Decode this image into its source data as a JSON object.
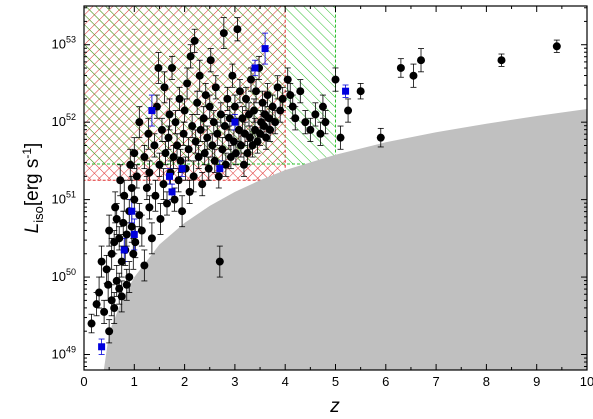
{
  "chart_data": {
    "type": "scatter",
    "title": "",
    "xlabel": "z",
    "ylabel_main": "L",
    "ylabel_sub": "iso",
    "ylabel_units_prefix": "[erg s",
    "ylabel_units_sup": "-1",
    "ylabel_units_suffix": "]",
    "xlim": [
      0,
      10
    ],
    "ylim_log10": [
      48.8,
      53.5
    ],
    "yscale": "log",
    "grid": false,
    "x_ticks": [
      "0",
      "1",
      "2",
      "3",
      "4",
      "5",
      "6",
      "7",
      "8",
      "9",
      "10"
    ],
    "y_ticks": [
      {
        "base": "10",
        "exp": "49",
        "log": 49
      },
      {
        "base": "10",
        "exp": "50",
        "log": 50
      },
      {
        "base": "10",
        "exp": "51",
        "log": 51
      },
      {
        "base": "10",
        "exp": "52",
        "log": 52
      },
      {
        "base": "10",
        "exp": "53",
        "log": 53
      }
    ],
    "colors": {
      "black_points": "#000000",
      "blue_points": "#0000dd",
      "red_hatch": "#e03030",
      "green_hatch": "#30c030",
      "threshold_fill": "#c0c0c0"
    },
    "threshold_curve": {
      "x": [
        0.35,
        0.5,
        0.75,
        1.0,
        1.5,
        2.0,
        2.5,
        3.0,
        3.5,
        4.0,
        5.0,
        6.0,
        7.0,
        8.0,
        9.0,
        10.0
      ],
      "logL": [
        48.6,
        49.28,
        49.7,
        50.0,
        50.42,
        50.7,
        50.92,
        51.1,
        51.25,
        51.38,
        51.58,
        51.74,
        51.87,
        51.98,
        52.08,
        52.17
      ]
    },
    "regions": [
      {
        "color": "red",
        "x": [
          0,
          4.0
        ],
        "logL_min": 51.25,
        "logL_max": 53.5
      },
      {
        "color": "green",
        "x": [
          0,
          5.0
        ],
        "logL_min": 51.46,
        "logL_max": 53.5
      }
    ],
    "series": [
      {
        "marker": "circle",
        "color": "black",
        "points": [
          [
            0.15,
            49.4,
            0.12
          ],
          [
            0.25,
            49.65,
            0.15
          ],
          [
            0.3,
            49.8,
            0.2
          ],
          [
            0.35,
            50.2,
            0.2
          ],
          [
            0.4,
            49.55,
            0.15
          ],
          [
            0.45,
            50.1,
            0.18
          ],
          [
            0.48,
            49.9,
            0.2
          ],
          [
            0.5,
            50.6,
            0.2
          ],
          [
            0.5,
            49.3,
            0.15
          ],
          [
            0.55,
            50.3,
            0.2
          ],
          [
            0.55,
            49.7,
            0.2
          ],
          [
            0.6,
            50.45,
            0.15
          ],
          [
            0.6,
            49.6,
            0.2
          ],
          [
            0.62,
            50.9,
            0.2
          ],
          [
            0.65,
            49.95,
            0.2
          ],
          [
            0.65,
            50.75,
            0.2
          ],
          [
            0.7,
            50.5,
            0.15
          ],
          [
            0.7,
            49.85,
            0.2
          ],
          [
            0.72,
            51.25,
            0.2
          ],
          [
            0.75,
            50.2,
            0.2
          ],
          [
            0.75,
            49.75,
            0.2
          ],
          [
            0.78,
            50.7,
            0.15
          ],
          [
            0.8,
            51.05,
            0.2
          ],
          [
            0.82,
            50.35,
            0.2
          ],
          [
            0.85,
            49.9,
            0.2
          ],
          [
            0.85,
            50.55,
            0.15
          ],
          [
            0.9,
            50.0,
            0.2
          ],
          [
            0.9,
            50.85,
            0.15
          ],
          [
            0.92,
            51.45,
            0.2
          ],
          [
            0.95,
            50.65,
            0.2
          ],
          [
            0.95,
            51.15,
            0.15
          ],
          [
            0.98,
            50.3,
            0.2
          ],
          [
            1.0,
            51.0,
            0.15
          ],
          [
            1.0,
            51.6,
            0.2
          ],
          [
            1.02,
            50.45,
            0.2
          ],
          [
            1.05,
            51.3,
            0.15
          ],
          [
            1.1,
            50.8,
            0.15
          ],
          [
            1.1,
            52.0,
            0.2
          ],
          [
            1.15,
            50.6,
            0.2
          ],
          [
            1.2,
            51.55,
            0.15
          ],
          [
            1.2,
            50.15,
            0.2
          ],
          [
            1.25,
            51.15,
            0.15
          ],
          [
            1.28,
            51.85,
            0.2
          ],
          [
            1.3,
            50.9,
            0.15
          ],
          [
            1.3,
            51.35,
            0.15
          ],
          [
            1.35,
            50.5,
            0.2
          ],
          [
            1.4,
            51.7,
            0.15
          ],
          [
            1.42,
            51.05,
            0.2
          ],
          [
            1.45,
            52.2,
            0.15
          ],
          [
            1.48,
            52.7,
            0.2
          ],
          [
            1.5,
            51.45,
            0.15
          ],
          [
            1.52,
            50.75,
            0.2
          ],
          [
            1.55,
            51.9,
            0.15
          ],
          [
            1.58,
            51.2,
            0.2
          ],
          [
            1.6,
            52.45,
            0.2
          ],
          [
            1.62,
            51.6,
            0.15
          ],
          [
            1.65,
            50.95,
            0.15
          ],
          [
            1.68,
            51.8,
            0.15
          ],
          [
            1.7,
            52.1,
            0.2
          ],
          [
            1.72,
            51.35,
            0.15
          ],
          [
            1.75,
            52.7,
            0.15
          ],
          [
            1.78,
            51.55,
            0.15
          ],
          [
            1.8,
            51.0,
            0.15
          ],
          [
            1.82,
            52.0,
            0.15
          ],
          [
            1.85,
            51.7,
            0.15
          ],
          [
            1.88,
            51.25,
            0.15
          ],
          [
            1.9,
            52.3,
            0.15
          ],
          [
            1.92,
            51.5,
            0.15
          ],
          [
            1.95,
            50.85,
            0.2
          ],
          [
            1.98,
            51.85,
            0.15
          ],
          [
            2.0,
            52.15,
            0.15
          ],
          [
            2.02,
            51.4,
            0.15
          ],
          [
            2.05,
            52.5,
            0.2
          ],
          [
            2.08,
            51.65,
            0.15
          ],
          [
            2.1,
            51.1,
            0.15
          ],
          [
            2.12,
            52.85,
            0.15
          ],
          [
            2.15,
            51.95,
            0.15
          ],
          [
            2.18,
            51.3,
            0.2
          ],
          [
            2.2,
            53.05,
            0.15
          ],
          [
            2.22,
            51.75,
            0.15
          ],
          [
            2.25,
            52.25,
            0.15
          ],
          [
            2.28,
            51.55,
            0.15
          ],
          [
            2.3,
            52.6,
            0.2
          ],
          [
            2.32,
            51.9,
            0.15
          ],
          [
            2.35,
            51.2,
            0.15
          ],
          [
            2.38,
            52.05,
            0.15
          ],
          [
            2.4,
            51.6,
            0.15
          ],
          [
            2.42,
            52.35,
            0.15
          ],
          [
            2.45,
            51.8,
            0.15
          ],
          [
            2.48,
            51.4,
            0.15
          ],
          [
            2.5,
            52.2,
            0.15
          ],
          [
            2.52,
            52.8,
            0.15
          ],
          [
            2.55,
            51.7,
            0.15
          ],
          [
            2.58,
            52.0,
            0.15
          ],
          [
            2.6,
            51.5,
            0.15
          ],
          [
            2.62,
            52.45,
            0.15
          ],
          [
            2.65,
            51.85,
            0.15
          ],
          [
            2.68,
            51.3,
            0.15
          ],
          [
            2.7,
            50.2,
            0.2
          ],
          [
            2.72,
            52.1,
            0.15
          ],
          [
            2.75,
            51.65,
            0.15
          ],
          [
            2.78,
            53.15,
            0.2
          ],
          [
            2.8,
            51.95,
            0.15
          ],
          [
            2.82,
            51.45,
            0.15
          ],
          [
            2.85,
            52.3,
            0.15
          ],
          [
            2.88,
            51.8,
            0.15
          ],
          [
            2.9,
            52.05,
            0.15
          ],
          [
            2.92,
            51.55,
            0.15
          ],
          [
            2.95,
            52.6,
            0.15
          ],
          [
            2.98,
            51.75,
            0.15
          ],
          [
            3.0,
            52.2,
            0.15
          ],
          [
            3.02,
            51.6,
            0.15
          ],
          [
            3.05,
            53.2,
            0.15
          ],
          [
            3.08,
            51.9,
            0.15
          ],
          [
            3.1,
            52.4,
            0.15
          ],
          [
            3.12,
            51.7,
            0.15
          ],
          [
            3.15,
            52.05,
            0.15
          ],
          [
            3.18,
            51.45,
            0.15
          ],
          [
            3.2,
            51.85,
            0.15
          ],
          [
            3.22,
            52.3,
            0.15
          ],
          [
            3.25,
            51.6,
            0.15
          ],
          [
            3.28,
            52.1,
            0.15
          ],
          [
            3.3,
            51.8,
            0.15
          ],
          [
            3.32,
            52.55,
            0.15
          ],
          [
            3.35,
            51.7,
            0.15
          ],
          [
            3.38,
            52.15,
            0.15
          ],
          [
            3.4,
            51.9,
            0.15
          ],
          [
            3.42,
            52.4,
            0.15
          ],
          [
            3.45,
            51.75,
            0.15
          ],
          [
            3.48,
            52.7,
            0.15
          ],
          [
            3.5,
            51.85,
            0.15
          ],
          [
            3.52,
            52.0,
            0.15
          ],
          [
            3.55,
            52.25,
            0.15
          ],
          [
            3.58,
            51.95,
            0.15
          ],
          [
            3.6,
            52.1,
            0.15
          ],
          [
            3.62,
            51.8,
            0.15
          ],
          [
            3.65,
            52.35,
            0.15
          ],
          [
            3.68,
            52.05,
            0.15
          ],
          [
            3.7,
            51.9,
            0.15
          ],
          [
            3.75,
            52.2,
            0.15
          ],
          [
            3.8,
            52.0,
            0.15
          ],
          [
            3.85,
            52.45,
            0.15
          ],
          [
            3.9,
            52.15,
            0.15
          ],
          [
            3.95,
            52.3,
            0.15
          ],
          [
            4.05,
            52.55,
            0.15
          ],
          [
            4.1,
            52.35,
            0.15
          ],
          [
            4.15,
            52.2,
            0.15
          ],
          [
            4.2,
            52.05,
            0.15
          ],
          [
            4.3,
            52.4,
            0.15
          ],
          [
            4.4,
            52.0,
            0.15
          ],
          [
            4.5,
            51.9,
            0.15
          ],
          [
            4.6,
            52.1,
            0.15
          ],
          [
            4.7,
            51.85,
            0.15
          ],
          [
            4.75,
            52.2,
            0.15
          ],
          [
            4.8,
            52.0,
            0.15
          ],
          [
            5.0,
            52.55,
            0.15
          ],
          [
            5.1,
            51.8,
            0.15
          ],
          [
            5.25,
            52.15,
            0.15
          ],
          [
            5.5,
            52.4,
            0.1
          ],
          [
            5.9,
            51.8,
            0.12
          ],
          [
            6.3,
            52.7,
            0.12
          ],
          [
            6.55,
            52.6,
            0.15
          ],
          [
            6.7,
            52.8,
            0.15
          ],
          [
            8.3,
            52.8,
            0.08
          ],
          [
            9.4,
            52.98,
            0.08
          ]
        ]
      },
      {
        "marker": "square",
        "color": "blue",
        "points": [
          [
            0.35,
            49.1,
            0.1
          ],
          [
            0.8,
            50.35,
            0.15
          ],
          [
            0.95,
            50.85,
            0.15
          ],
          [
            1.0,
            50.55,
            0.2
          ],
          [
            1.35,
            52.15,
            0.2
          ],
          [
            1.7,
            51.3,
            0.1
          ],
          [
            1.75,
            51.1,
            0.1
          ],
          [
            1.95,
            51.4,
            0.1
          ],
          [
            2.7,
            51.4,
            0.1
          ],
          [
            3.0,
            52.0,
            0.1
          ],
          [
            3.4,
            52.7,
            0.1
          ],
          [
            3.6,
            52.95,
            0.2
          ],
          [
            5.2,
            52.4,
            0.08
          ]
        ]
      }
    ]
  }
}
